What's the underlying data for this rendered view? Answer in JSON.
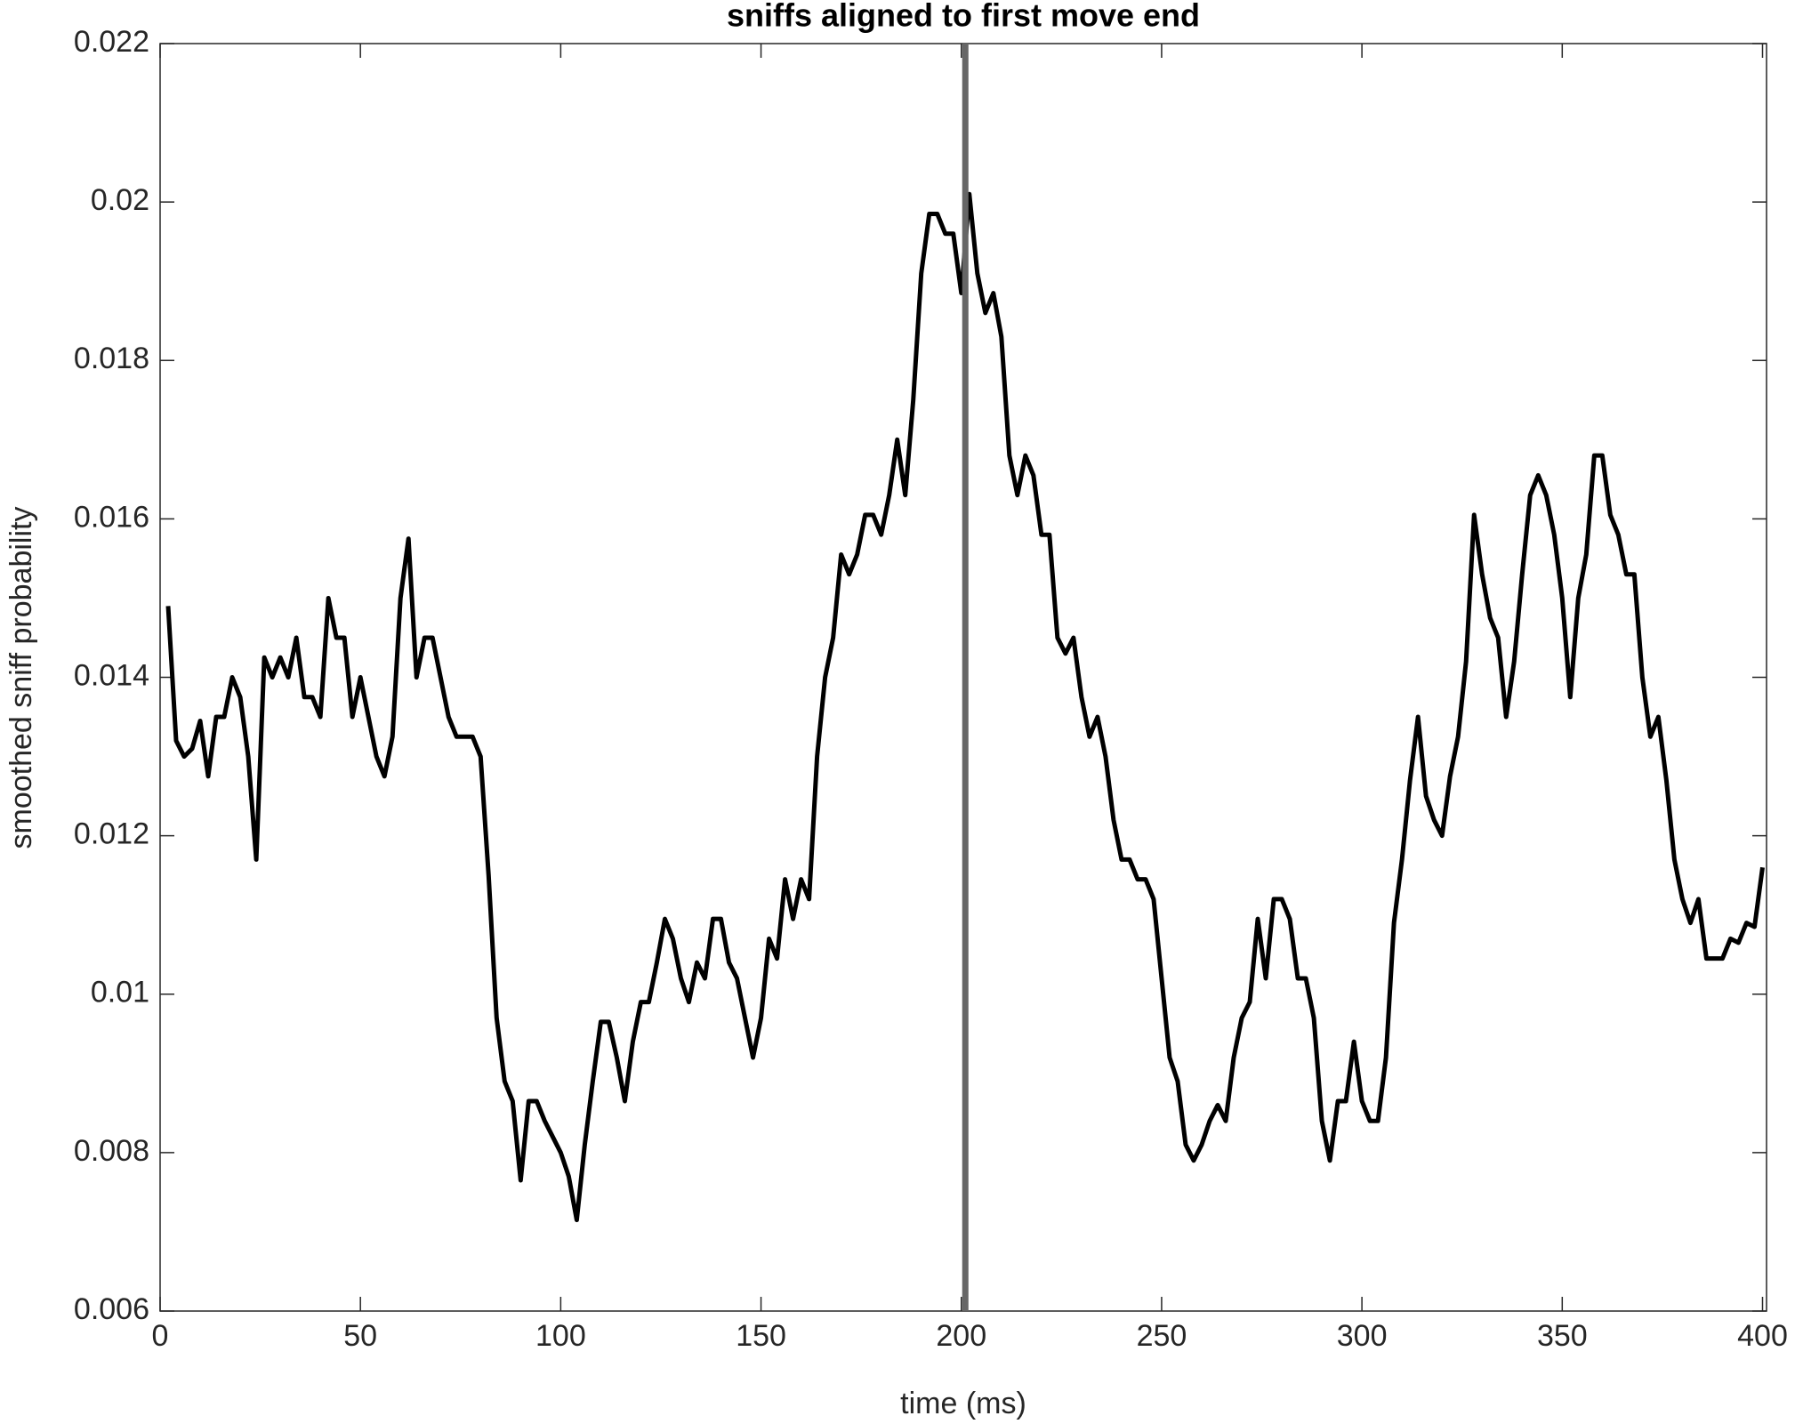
{
  "chart_data": {
    "type": "line",
    "title": "sniffs aligned to first move end",
    "xlabel": "time (ms)",
    "ylabel": "smoothed sniff probability",
    "color": "#000000",
    "x": [
      2,
      4,
      6,
      8,
      10,
      12,
      14,
      16,
      18,
      20,
      22,
      24,
      26,
      28,
      30,
      32,
      34,
      36,
      38,
      40,
      42,
      44,
      46,
      48,
      50,
      52,
      54,
      56,
      58,
      60,
      62,
      64,
      66,
      68,
      70,
      72,
      74,
      76,
      78,
      80,
      82,
      84,
      86,
      88,
      90,
      92,
      94,
      96,
      98,
      100,
      102,
      104,
      106,
      108,
      110,
      112,
      114,
      116,
      118,
      120,
      122,
      124,
      126,
      128,
      130,
      132,
      134,
      136,
      138,
      140,
      142,
      144,
      146,
      148,
      150,
      152,
      154,
      156,
      158,
      160,
      162,
      164,
      166,
      168,
      170,
      172,
      174,
      176,
      178,
      180,
      182,
      184,
      186,
      188,
      190,
      192,
      194,
      196,
      198,
      200,
      202,
      204,
      206,
      208,
      210,
      212,
      214,
      216,
      218,
      220,
      222,
      224,
      226,
      228,
      230,
      232,
      234,
      236,
      238,
      240,
      242,
      244,
      246,
      248,
      250,
      252,
      254,
      256,
      258,
      260,
      262,
      264,
      266,
      268,
      270,
      272,
      274,
      276,
      278,
      280,
      282,
      284,
      286,
      288,
      290,
      292,
      294,
      296,
      298,
      300,
      302,
      304,
      306,
      308,
      310,
      312,
      314,
      316,
      318,
      320,
      322,
      324,
      326,
      328,
      330,
      332,
      334,
      336,
      338,
      340,
      342,
      344,
      346,
      348,
      350,
      352,
      354,
      356,
      358,
      360,
      362,
      364,
      366,
      368,
      370,
      372,
      374,
      376,
      378,
      380,
      382,
      384,
      386,
      388,
      390,
      392,
      394,
      396,
      398,
      400
    ],
    "values": [
      0.0149,
      0.0132,
      0.013,
      0.0131,
      0.01345,
      0.01275,
      0.0135,
      0.0135,
      0.014,
      0.01375,
      0.013,
      0.0117,
      0.01425,
      0.014,
      0.01425,
      0.014,
      0.0145,
      0.01375,
      0.01375,
      0.0135,
      0.015,
      0.0145,
      0.0145,
      0.0135,
      0.014,
      0.0135,
      0.013,
      0.01275,
      0.01325,
      0.015,
      0.01575,
      0.014,
      0.0145,
      0.0145,
      0.014,
      0.0135,
      0.01325,
      0.01325,
      0.01325,
      0.013,
      0.0115,
      0.0097,
      0.0089,
      0.00865,
      0.00765,
      0.00865,
      0.00865,
      0.0084,
      0.0082,
      0.008,
      0.0077,
      0.00715,
      0.0081,
      0.0089,
      0.00965,
      0.00965,
      0.0092,
      0.00865,
      0.0094,
      0.0099,
      0.0099,
      0.0104,
      0.01095,
      0.0107,
      0.0102,
      0.0099,
      0.0104,
      0.0102,
      0.01095,
      0.01095,
      0.0104,
      0.0102,
      0.0097,
      0.0092,
      0.0097,
      0.0107,
      0.01045,
      0.01145,
      0.01095,
      0.01145,
      0.0112,
      0.013,
      0.014,
      0.0145,
      0.01555,
      0.0153,
      0.01555,
      0.01605,
      0.01605,
      0.0158,
      0.0163,
      0.017,
      0.0163,
      0.0175,
      0.0191,
      0.01985,
      0.01985,
      0.0196,
      0.0196,
      0.01885,
      0.0201,
      0.0191,
      0.0186,
      0.01885,
      0.0183,
      0.0168,
      0.0163,
      0.0168,
      0.01655,
      0.0158,
      0.0158,
      0.0145,
      0.0143,
      0.0145,
      0.01375,
      0.01325,
      0.0135,
      0.013,
      0.0122,
      0.0117,
      0.0117,
      0.01145,
      0.01145,
      0.0112,
      0.0102,
      0.0092,
      0.0089,
      0.0081,
      0.0079,
      0.0081,
      0.0084,
      0.0086,
      0.0084,
      0.0092,
      0.0097,
      0.0099,
      0.01095,
      0.0102,
      0.0112,
      0.0112,
      0.01095,
      0.0102,
      0.0102,
      0.0097,
      0.0084,
      0.0079,
      0.00865,
      0.00865,
      0.0094,
      0.00865,
      0.0084,
      0.0084,
      0.0092,
      0.0109,
      0.0117,
      0.0127,
      0.0135,
      0.0125,
      0.0122,
      0.012,
      0.01275,
      0.01325,
      0.0142,
      0.01605,
      0.0153,
      0.01475,
      0.0145,
      0.0135,
      0.0142,
      0.0153,
      0.0163,
      0.01655,
      0.0163,
      0.0158,
      0.015,
      0.01375,
      0.015,
      0.01555,
      0.0168,
      0.0168,
      0.01605,
      0.0158,
      0.0153,
      0.0153,
      0.014,
      0.01325,
      0.0135,
      0.0127,
      0.0117,
      0.0112,
      0.0109,
      0.0112,
      0.01045,
      0.01045,
      0.01045,
      0.0107,
      0.01065,
      0.0109,
      0.01085,
      0.0116
    ],
    "vline": {
      "x": 201,
      "color": "#666666"
    },
    "xlim": [
      0,
      401
    ],
    "xticks": [
      0,
      50,
      100,
      150,
      200,
      250,
      300,
      350,
      400
    ],
    "ylim": [
      0.006,
      0.022
    ],
    "yticks": [
      0.006,
      0.008,
      0.01,
      0.012,
      0.014,
      0.016,
      0.018,
      0.02,
      0.022
    ],
    "grid": false
  }
}
